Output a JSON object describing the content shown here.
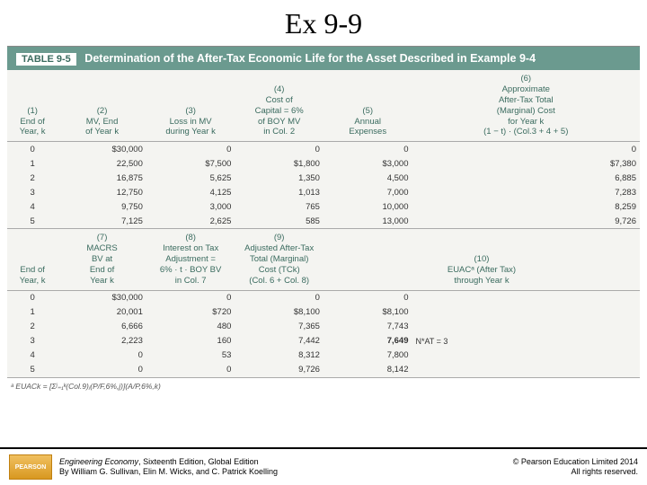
{
  "page_title": "Ex 9-9",
  "table_caption_label": "TABLE 9-5",
  "table_caption": "Determination of the After-Tax Economic Life for the Asset Described in Example 9-4",
  "headers1": {
    "c1": "(1)\nEnd of\nYear, k",
    "c2": "(2)\nMV, End\nof Year k",
    "c3": "(3)\nLoss in MV\nduring Year k",
    "c4": "(4)\nCost of\nCapital = 6%\nof BOY MV\nin Col. 2",
    "c5": "(5)\nAnnual\nExpenses",
    "c6": "(6)\nApproximate\nAfter-Tax Total\n(Marginal) Cost\nfor Year k\n(1 − t) · (Col.3 + 4 + 5)"
  },
  "rows1": [
    [
      "0",
      "$30,000",
      "0",
      "0",
      "0",
      "0"
    ],
    [
      "1",
      "22,500",
      "$7,500",
      "$1,800",
      "$3,000",
      "$7,380"
    ],
    [
      "2",
      "16,875",
      "5,625",
      "1,350",
      "4,500",
      "6,885"
    ],
    [
      "3",
      "12,750",
      "4,125",
      "1,013",
      "7,000",
      "7,283"
    ],
    [
      "4",
      "9,750",
      "3,000",
      "765",
      "10,000",
      "8,259"
    ],
    [
      "5",
      "7,125",
      "2,625",
      "585",
      "13,000",
      "9,726"
    ]
  ],
  "headers2": {
    "c1": "End of\nYear, k",
    "c7": "(7)\nMACRS\nBV at\nEnd of\nYear k",
    "c8": "(8)\nInterest on Tax\nAdjustment =\n6% · t · BOY BV\nin Col. 7",
    "c9": "(9)\nAdjusted After-Tax\nTotal (Marginal)\nCost (TCk)\n(Col. 6 + Col. 8)",
    "c10": "(10)\nEUACᵃ (After Tax)\nthrough Year k"
  },
  "rows2": [
    [
      "0",
      "$30,000",
      "0",
      "0",
      "0",
      ""
    ],
    [
      "1",
      "20,001",
      "$720",
      "$8,100",
      "$8,100",
      ""
    ],
    [
      "2",
      "6,666",
      "480",
      "7,365",
      "7,743",
      ""
    ],
    [
      "3",
      "2,223",
      "160",
      "7,442",
      "7,649",
      "N*AT = 3"
    ],
    [
      "4",
      "0",
      "53",
      "8,312",
      "7,800",
      ""
    ],
    [
      "5",
      "0",
      "0",
      "9,726",
      "8,142",
      ""
    ]
  ],
  "footnote": "ᵃ EUACk = [Σʲ₌₁ᵏ(Col.9)ⱼ(P/F,6%,j)](A/P,6%,k)",
  "footer": {
    "logo": "PEARSON",
    "book_title": "Engineering Economy",
    "book_sub": ", Sixteenth Edition, Global Edition",
    "authors": "By William G. Sullivan, Elin M. Wicks, and C. Patrick Koelling",
    "copyright1": "© Pearson Education Limited 2014",
    "copyright2": "All rights reserved."
  }
}
